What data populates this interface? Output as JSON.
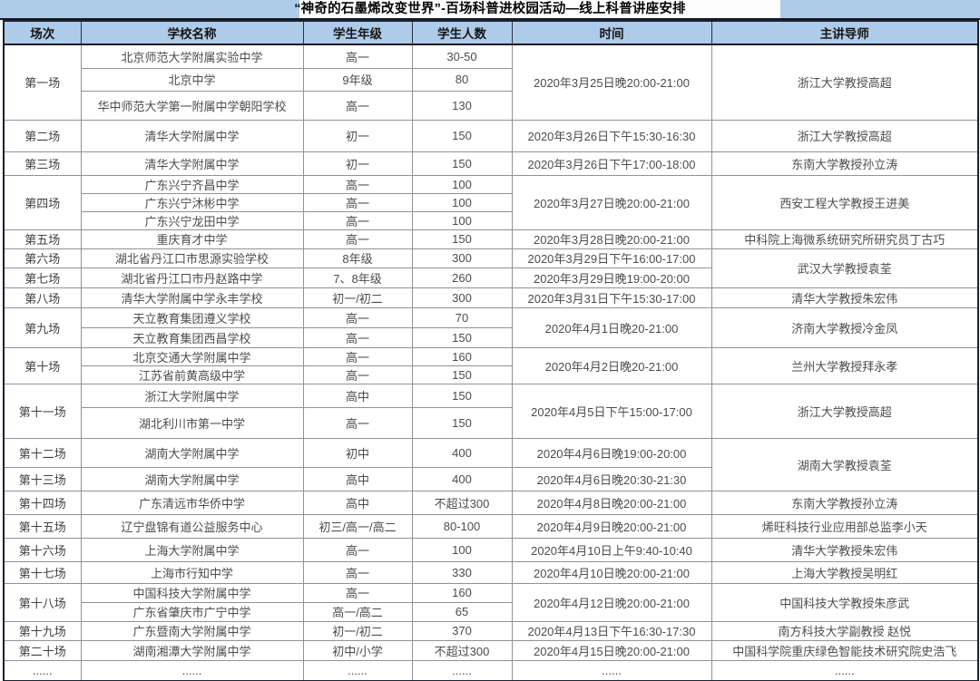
{
  "title": "“神奇的石墨烯改变世界”-百场科普进校园活动—线上科普讲座安排",
  "columns": [
    "场次",
    "学校名称",
    "学生年级",
    "学生人数",
    "时间",
    "主讲导师"
  ],
  "colors": {
    "header_bg": "#aecbea",
    "border_dark": "#1c2130",
    "border_inner": "#8f9296",
    "text": "#4c4c4c"
  },
  "rows": [
    [
      {
        "t": "第一场",
        "rs": 3
      },
      {
        "t": "北京师范大学附属实验中学"
      },
      {
        "t": "高一"
      },
      {
        "t": "30-50"
      },
      {
        "t": "2020年3月25日晚20:00-21:00",
        "rs": 3
      },
      {
        "t": "浙江大学教授高超",
        "rs": 3
      }
    ],
    [
      null,
      {
        "t": "北京中学"
      },
      {
        "t": "9年级"
      },
      {
        "t": "80"
      },
      null,
      null
    ],
    [
      null,
      {
        "t": "华中师范大学第一附属中学朝阳学校"
      },
      {
        "t": "高一"
      },
      {
        "t": "130"
      },
      null,
      null
    ],
    [
      {
        "t": "第二场"
      },
      {
        "t": "清华大学附属中学"
      },
      {
        "t": "初一"
      },
      {
        "t": "150"
      },
      {
        "t": "2020年3月26日下午15:30-16:30"
      },
      {
        "t": "浙江大学教授高超"
      }
    ],
    [
      {
        "t": "第三场"
      },
      {
        "t": "清华大学附属中学"
      },
      {
        "t": "初一"
      },
      {
        "t": "150"
      },
      {
        "t": "2020年3月26日下午17:00-18:00"
      },
      {
        "t": "东南大学教授孙立涛"
      }
    ],
    [
      {
        "t": "第四场",
        "rs": 3
      },
      {
        "t": "广东兴宁齐昌中学"
      },
      {
        "t": "高一"
      },
      {
        "t": "100"
      },
      {
        "t": "2020年3月27日晚20:00-21:00",
        "rs": 3
      },
      {
        "t": "西安工程大学教授王进美",
        "rs": 3
      }
    ],
    [
      null,
      {
        "t": "广东兴宁沐彬中学"
      },
      {
        "t": "高一"
      },
      {
        "t": "100"
      },
      null,
      null
    ],
    [
      null,
      {
        "t": "广东兴宁龙田中学"
      },
      {
        "t": "高一"
      },
      {
        "t": "100"
      },
      null,
      null
    ],
    [
      {
        "t": "第五场"
      },
      {
        "t": "重庆育才中学"
      },
      {
        "t": "高一"
      },
      {
        "t": "150"
      },
      {
        "t": "2020年3月28日晚20:00-21:00"
      },
      {
        "t": "中科院上海微系统研究所研究员丁古巧"
      }
    ],
    [
      {
        "t": "第六场"
      },
      {
        "t": "湖北省丹江口市思源实验学校"
      },
      {
        "t": "8年级"
      },
      {
        "t": "300"
      },
      {
        "t": "2020年3月29日下午16:00-17:00"
      },
      {
        "t": "武汉大学教授袁荃",
        "rs": 2
      }
    ],
    [
      {
        "t": "第七场"
      },
      {
        "t": "湖北省丹江口市丹赵路中学"
      },
      {
        "t": "7、8年级"
      },
      {
        "t": "260"
      },
      {
        "t": "2020年3月29日晚19:00-20:00"
      },
      null
    ],
    [
      {
        "t": "第八场"
      },
      {
        "t": "清华大学附属中学永丰学校"
      },
      {
        "t": "初一/初二"
      },
      {
        "t": "300"
      },
      {
        "t": "2020年3月31日下午15:30-17:00"
      },
      {
        "t": "清华大学教授朱宏伟"
      }
    ],
    [
      {
        "t": "第九场",
        "rs": 2
      },
      {
        "t": "天立教育集团遵义学校"
      },
      {
        "t": "高一"
      },
      {
        "t": "70"
      },
      {
        "t": "2020年4月1日晚20-21:00",
        "rs": 2
      },
      {
        "t": "济南大学教授冷金凤",
        "rs": 2
      }
    ],
    [
      null,
      {
        "t": "天立教育集团西昌学校"
      },
      {
        "t": "高一"
      },
      {
        "t": "150"
      },
      null,
      null
    ],
    [
      {
        "t": "第十场",
        "rs": 2
      },
      {
        "t": "北京交通大学附属中学"
      },
      {
        "t": "高一"
      },
      {
        "t": "160"
      },
      {
        "t": "2020年4月2日晚20-21:00",
        "rs": 2
      },
      {
        "t": "兰州大学教授拜永孝",
        "rs": 2
      }
    ],
    [
      null,
      {
        "t": "江苏省前黄高级中学"
      },
      {
        "t": "高一"
      },
      {
        "t": "150"
      },
      null,
      null
    ],
    [
      {
        "t": "第十一场",
        "rs": 2
      },
      {
        "t": "浙江大学附属中学"
      },
      {
        "t": "高中"
      },
      {
        "t": "150"
      },
      {
        "t": "2020年4月5日下午15:00-17:00",
        "rs": 2
      },
      {
        "t": "浙江大学教授高超",
        "rs": 2
      }
    ],
    [
      null,
      {
        "t": "湖北利川市第一中学"
      },
      {
        "t": "高一"
      },
      {
        "t": "150"
      },
      null,
      null
    ],
    [
      {
        "t": "第十二场"
      },
      {
        "t": "湖南大学附属中学"
      },
      {
        "t": "初中"
      },
      {
        "t": "400"
      },
      {
        "t": "2020年4月6日晚19:00-20:00"
      },
      {
        "t": "湖南大学教授袁荃",
        "rs": 2
      }
    ],
    [
      {
        "t": "第十三场"
      },
      {
        "t": "湖南大学附属中学"
      },
      {
        "t": "高中"
      },
      {
        "t": "400"
      },
      {
        "t": "2020年4月6日晚20:30-21:30"
      },
      null
    ],
    [
      {
        "t": "第十四场"
      },
      {
        "t": "广东清远市华侨中学"
      },
      {
        "t": "高中"
      },
      {
        "t": "不超过300"
      },
      {
        "t": "2020年4月8日晚20:00-21:00"
      },
      {
        "t": "东南大学教授孙立涛"
      }
    ],
    [
      {
        "t": "第十五场"
      },
      {
        "t": "辽宁盘锦有道公益服务中心"
      },
      {
        "t": "初三/高一/高二"
      },
      {
        "t": "80-100"
      },
      {
        "t": "2020年4月9日晚20:00-21:00"
      },
      {
        "t": "烯旺科技行业应用部总监李小天"
      }
    ],
    [
      {
        "t": "第十六场"
      },
      {
        "t": "上海大学附属中学"
      },
      {
        "t": "高一"
      },
      {
        "t": "100"
      },
      {
        "t": "2020年4月10日上午9:40-10:40"
      },
      {
        "t": "清华大学教授朱宏伟"
      }
    ],
    [
      {
        "t": "第十七场"
      },
      {
        "t": "上海市行知中学"
      },
      {
        "t": "高一"
      },
      {
        "t": "330"
      },
      {
        "t": "2020年4月10日晚20:00-21:00"
      },
      {
        "t": "上海大学教授吴明红"
      }
    ],
    [
      {
        "t": "第十八场",
        "rs": 2
      },
      {
        "t": "中国科技大学附属中学"
      },
      {
        "t": "高一"
      },
      {
        "t": "160"
      },
      {
        "t": "2020年4月12日晚20:00-21:00",
        "rs": 2
      },
      {
        "t": "中国科技大学教授朱彦武",
        "rs": 2
      }
    ],
    [
      null,
      {
        "t": "广东省肇庆市广宁中学"
      },
      {
        "t": "高一/高二"
      },
      {
        "t": "65"
      },
      null,
      null
    ],
    [
      {
        "t": "第十九场"
      },
      {
        "t": "广东暨南大学附属中学"
      },
      {
        "t": "初一/初二"
      },
      {
        "t": "370"
      },
      {
        "t": "2020年4月13日下午16:30-17:30"
      },
      {
        "t": "南方科技大学副教授 赵悦"
      }
    ],
    [
      {
        "t": "第二十场"
      },
      {
        "t": "湖南湘潭大学附属中学"
      },
      {
        "t": "初中/小学"
      },
      {
        "t": "不超过300"
      },
      {
        "t": "2020年4月15日晚20:00-21:00"
      },
      {
        "t": "中国科学院重庆绿色智能技术研究院史浩飞"
      }
    ],
    [
      {
        "t": "......"
      },
      {
        "t": "......"
      },
      {
        "t": "......"
      },
      {
        "t": "......"
      },
      {
        "t": "......"
      },
      {
        "t": "......"
      }
    ]
  ]
}
